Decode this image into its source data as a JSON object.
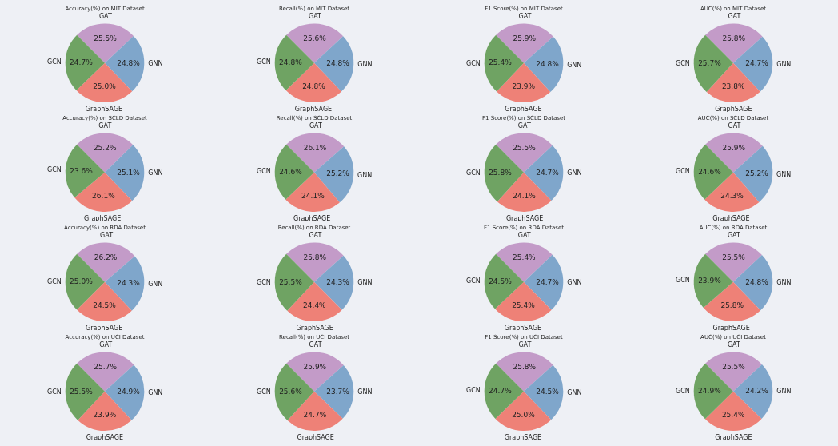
{
  "chart_data": [
    {
      "type": "pie",
      "title": "Accuracy(%) on MIT Dataset",
      "categories": [
        "GAT",
        "GNN",
        "GraphSAGE",
        "GCN"
      ],
      "values": [
        25.5,
        24.8,
        25.0,
        24.7
      ],
      "value_labels": [
        "25.5%",
        "24.8%",
        "25.0%",
        "24.7%"
      ],
      "colors": [
        "#c39bc8",
        "#7fa6cb",
        "#ee8177",
        "#6fa363"
      ]
    },
    {
      "type": "pie",
      "title": "Recall(%) on MIT Dataset",
      "categories": [
        "GAT",
        "GNN",
        "GraphSAGE",
        "GCN"
      ],
      "values": [
        25.6,
        24.8,
        24.8,
        24.8
      ],
      "value_labels": [
        "25.6%",
        "24.8%",
        "24.8%",
        "24.8%"
      ],
      "colors": [
        "#c39bc8",
        "#7fa6cb",
        "#ee8177",
        "#6fa363"
      ]
    },
    {
      "type": "pie",
      "title": "F1 Score(%) on MIT Dataset",
      "categories": [
        "GAT",
        "GNN",
        "GraphSAGE",
        "GCN"
      ],
      "values": [
        25.9,
        24.8,
        23.9,
        25.4
      ],
      "value_labels": [
        "25.9%",
        "24.8%",
        "23.9%",
        "25.4%"
      ],
      "colors": [
        "#c39bc8",
        "#7fa6cb",
        "#ee8177",
        "#6fa363"
      ]
    },
    {
      "type": "pie",
      "title": "AUC(%) on MIT Dataset",
      "categories": [
        "GAT",
        "GNN",
        "GraphSAGE",
        "GCN"
      ],
      "values": [
        25.8,
        24.7,
        23.8,
        25.7
      ],
      "value_labels": [
        "25.8%",
        "24.7%",
        "23.8%",
        "25.7%"
      ],
      "colors": [
        "#c39bc8",
        "#7fa6cb",
        "#ee8177",
        "#6fa363"
      ]
    },
    {
      "type": "pie",
      "title": "Accuracy(%) on SCLD Dataset",
      "categories": [
        "GAT",
        "GNN",
        "GraphSAGE",
        "GCN"
      ],
      "values": [
        25.2,
        25.1,
        26.1,
        23.6
      ],
      "value_labels": [
        "25.2%",
        "25.1%",
        "26.1%",
        "23.6%"
      ],
      "colors": [
        "#c39bc8",
        "#7fa6cb",
        "#ee8177",
        "#6fa363"
      ]
    },
    {
      "type": "pie",
      "title": "Recall(%) on SCLD Dataset",
      "categories": [
        "GAT",
        "GNN",
        "GraphSAGE",
        "GCN"
      ],
      "values": [
        26.1,
        25.2,
        24.1,
        24.6
      ],
      "value_labels": [
        "26.1%",
        "25.2%",
        "24.1%",
        "24.6%"
      ],
      "colors": [
        "#c39bc8",
        "#7fa6cb",
        "#ee8177",
        "#6fa363"
      ]
    },
    {
      "type": "pie",
      "title": "F1 Score(%) on SCLD Dataset",
      "categories": [
        "GAT",
        "GNN",
        "GraphSAGE",
        "GCN"
      ],
      "values": [
        25.5,
        24.7,
        24.1,
        25.8
      ],
      "value_labels": [
        "25.5%",
        "24.7%",
        "24.1%",
        "25.8%"
      ],
      "colors": [
        "#c39bc8",
        "#7fa6cb",
        "#ee8177",
        "#6fa363"
      ]
    },
    {
      "type": "pie",
      "title": "AUC(%) on SCLD Dataset",
      "categories": [
        "GAT",
        "GNN",
        "GraphSAGE",
        "GCN"
      ],
      "values": [
        25.9,
        25.2,
        24.3,
        24.6
      ],
      "value_labels": [
        "25.9%",
        "25.2%",
        "24.3%",
        "24.6%"
      ],
      "colors": [
        "#c39bc8",
        "#7fa6cb",
        "#ee8177",
        "#6fa363"
      ]
    },
    {
      "type": "pie",
      "title": "Accuracy(%) on RDA Dataset",
      "categories": [
        "GAT",
        "GNN",
        "GraphSAGE",
        "GCN"
      ],
      "values": [
        26.2,
        24.3,
        24.5,
        25.0
      ],
      "value_labels": [
        "26.2%",
        "24.3%",
        "24.5%",
        "25.0%"
      ],
      "colors": [
        "#c39bc8",
        "#7fa6cb",
        "#ee8177",
        "#6fa363"
      ]
    },
    {
      "type": "pie",
      "title": "Recall(%) on RDA Dataset",
      "categories": [
        "GAT",
        "GNN",
        "GraphSAGE",
        "GCN"
      ],
      "values": [
        25.8,
        24.3,
        24.4,
        25.5
      ],
      "value_labels": [
        "25.8%",
        "24.3%",
        "24.4%",
        "25.5%"
      ],
      "colors": [
        "#c39bc8",
        "#7fa6cb",
        "#ee8177",
        "#6fa363"
      ]
    },
    {
      "type": "pie",
      "title": "F1 Score(%) on RDA Dataset",
      "categories": [
        "GAT",
        "GNN",
        "GraphSAGE",
        "GCN"
      ],
      "values": [
        25.4,
        24.7,
        25.4,
        24.5
      ],
      "value_labels": [
        "25.4%",
        "24.7%",
        "25.4%",
        "24.5%"
      ],
      "colors": [
        "#c39bc8",
        "#7fa6cb",
        "#ee8177",
        "#6fa363"
      ]
    },
    {
      "type": "pie",
      "title": "AUC(%) on RDA Dataset",
      "categories": [
        "GAT",
        "GNN",
        "GraphSAGE",
        "GCN"
      ],
      "values": [
        25.5,
        24.8,
        25.8,
        23.9
      ],
      "value_labels": [
        "25.5%",
        "24.8%",
        "25.8%",
        "23.9%"
      ],
      "colors": [
        "#c39bc8",
        "#7fa6cb",
        "#ee8177",
        "#6fa363"
      ]
    },
    {
      "type": "pie",
      "title": "Accuracy(%) on UCI Dataset",
      "categories": [
        "GAT",
        "GNN",
        "GraphSAGE",
        "GCN"
      ],
      "values": [
        25.7,
        24.9,
        23.9,
        25.5
      ],
      "value_labels": [
        "25.7%",
        "24.9%",
        "23.9%",
        "25.5%"
      ],
      "colors": [
        "#c39bc8",
        "#7fa6cb",
        "#ee8177",
        "#6fa363"
      ]
    },
    {
      "type": "pie",
      "title": "Recall(%) on UCI Dataset",
      "categories": [
        "GAT",
        "GNN",
        "GraphSAGE",
        "GCN"
      ],
      "values": [
        25.9,
        23.7,
        24.7,
        25.6
      ],
      "value_labels": [
        "25.9%",
        "23.7%",
        "24.7%",
        "25.6%"
      ],
      "colors": [
        "#c39bc8",
        "#7fa6cb",
        "#ee8177",
        "#6fa363"
      ]
    },
    {
      "type": "pie",
      "title": "F1 Score(%) on UCI Dataset",
      "categories": [
        "GAT",
        "GNN",
        "GraphSAGE",
        "GCN"
      ],
      "values": [
        25.8,
        24.5,
        25.0,
        24.7
      ],
      "value_labels": [
        "25.8%",
        "24.5%",
        "25.0%",
        "24.7%"
      ],
      "colors": [
        "#c39bc8",
        "#7fa6cb",
        "#ee8177",
        "#6fa363"
      ]
    },
    {
      "type": "pie",
      "title": "AUC(%) on UCI Dataset",
      "categories": [
        "GAT",
        "GNN",
        "GraphSAGE",
        "GCN"
      ],
      "values": [
        25.5,
        24.2,
        25.4,
        24.9
      ],
      "value_labels": [
        "25.5%",
        "24.2%",
        "25.4%",
        "24.9%"
      ],
      "colors": [
        "#c39bc8",
        "#7fa6cb",
        "#ee8177",
        "#6fa363"
      ]
    }
  ]
}
